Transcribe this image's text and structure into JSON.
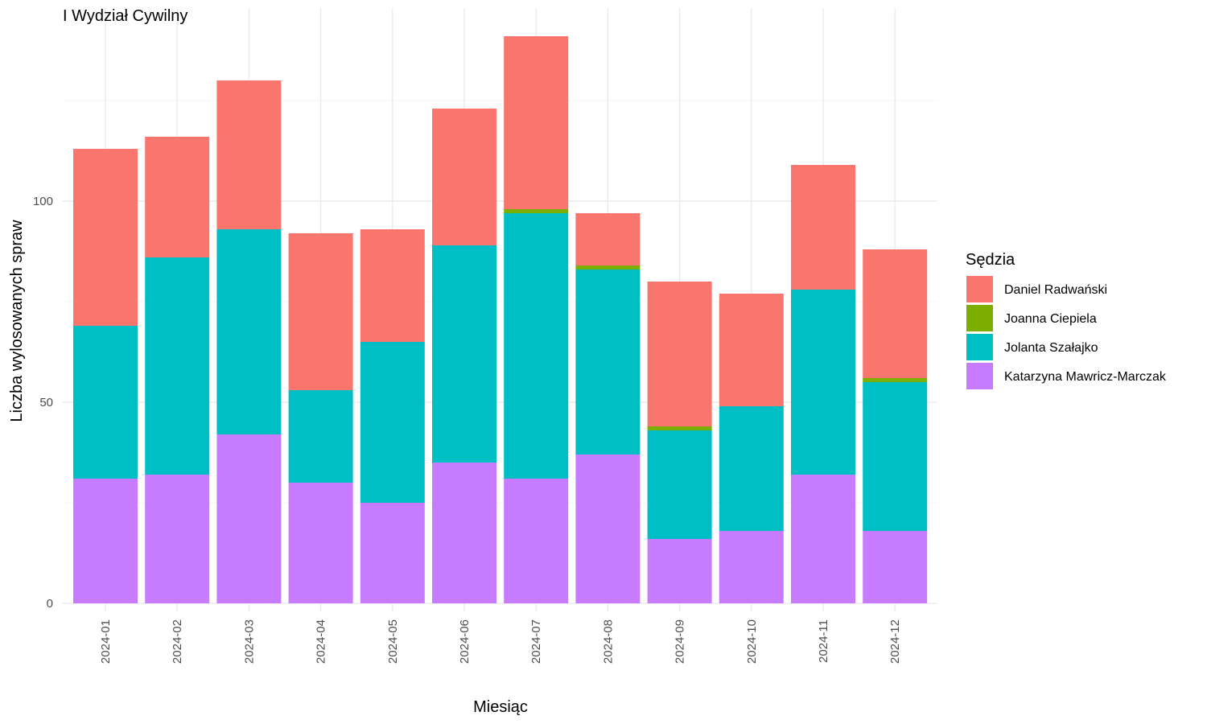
{
  "chart_data": {
    "type": "bar",
    "stacked": true,
    "title": "I Wydział Cywilny",
    "xlabel": "Miesiąc",
    "ylabel": "Liczba wylosowanych spraw",
    "ylim": [
      0,
      145
    ],
    "yticks": [
      0,
      50,
      100
    ],
    "grid": true,
    "legend_title": "Sędzia",
    "legend_position": "right",
    "categories": [
      "2024-01",
      "2024-02",
      "2024-03",
      "2024-04",
      "2024-05",
      "2024-06",
      "2024-07",
      "2024-08",
      "2024-09",
      "2024-10",
      "2024-11",
      "2024-12"
    ],
    "series": [
      {
        "name": "Katarzyna Mawricz-Marczak",
        "color": "#C77CFF",
        "values": [
          31,
          32,
          42,
          30,
          25,
          35,
          31,
          37,
          16,
          18,
          32,
          18
        ]
      },
      {
        "name": "Jolanta Szałajko",
        "color": "#00BFC4",
        "values": [
          38,
          54,
          51,
          23,
          40,
          54,
          66,
          46,
          27,
          31,
          46,
          37
        ]
      },
      {
        "name": "Joanna Ciepiela",
        "color": "#7CAE00",
        "values": [
          0,
          0,
          0,
          0,
          0,
          0,
          1,
          1,
          1,
          0,
          0,
          1
        ]
      },
      {
        "name": "Daniel Radwański",
        "color": "#F8766D",
        "values": [
          44,
          30,
          37,
          39,
          28,
          34,
          43,
          13,
          36,
          28,
          31,
          32
        ]
      }
    ],
    "legend_order": [
      "Daniel Radwański",
      "Joanna Ciepiela",
      "Jolanta Szałajko",
      "Katarzyna Mawricz-Marczak"
    ]
  }
}
